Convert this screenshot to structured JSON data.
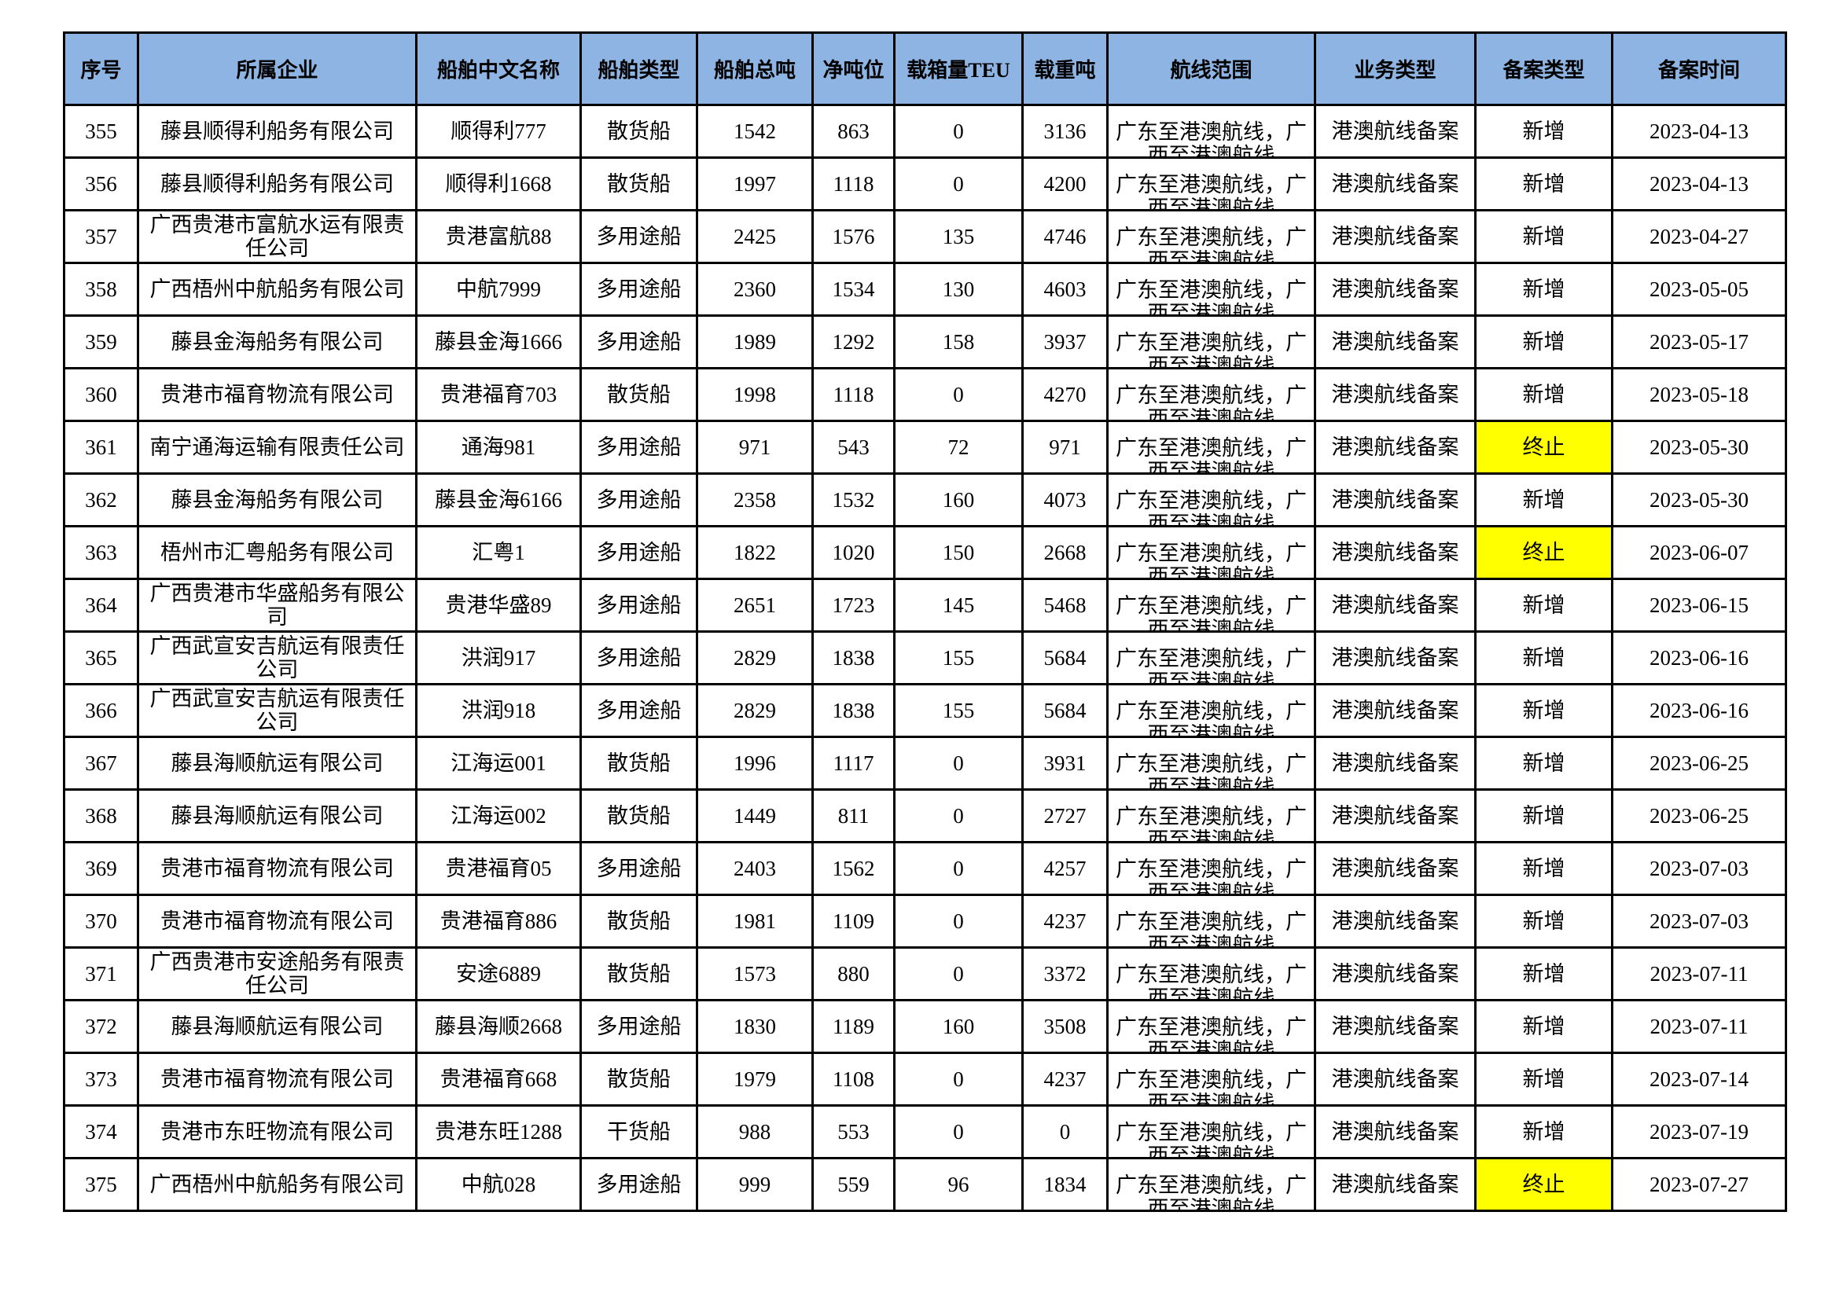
{
  "headers": [
    "序号",
    "所属企业",
    "船舶中文名称",
    "船舶类型",
    "船舶总吨",
    "净吨位",
    "载箱量TEU",
    "载重吨",
    "航线范围",
    "业务类型",
    "备案类型",
    "备案时间"
  ],
  "highlight_color": "#ffff00",
  "header_color": "#8db4e2",
  "rows": [
    [
      "355",
      "藤县顺得利船务有限公司",
      "顺得利777",
      "散货船",
      "1542",
      "863",
      "0",
      "3136",
      "广东至港澳航线，广西至港澳航线",
      "港澳航线备案",
      "新增",
      "2023-04-13"
    ],
    [
      "356",
      "藤县顺得利船务有限公司",
      "顺得利1668",
      "散货船",
      "1997",
      "1118",
      "0",
      "4200",
      "广东至港澳航线，广西至港澳航线",
      "港澳航线备案",
      "新增",
      "2023-04-13"
    ],
    [
      "357",
      "广西贵港市富航水运有限责任公司",
      "贵港富航88",
      "多用途船",
      "2425",
      "1576",
      "135",
      "4746",
      "广东至港澳航线，广西至港澳航线",
      "港澳航线备案",
      "新增",
      "2023-04-27"
    ],
    [
      "358",
      "广西梧州中航船务有限公司",
      "中航7999",
      "多用途船",
      "2360",
      "1534",
      "130",
      "4603",
      "广东至港澳航线，广西至港澳航线",
      "港澳航线备案",
      "新增",
      "2023-05-05"
    ],
    [
      "359",
      "藤县金海船务有限公司",
      "藤县金海1666",
      "多用途船",
      "1989",
      "1292",
      "158",
      "3937",
      "广东至港澳航线，广西至港澳航线",
      "港澳航线备案",
      "新增",
      "2023-05-17"
    ],
    [
      "360",
      "贵港市福育物流有限公司",
      "贵港福育703",
      "散货船",
      "1998",
      "1118",
      "0",
      "4270",
      "广东至港澳航线，广西至港澳航线",
      "港澳航线备案",
      "新增",
      "2023-05-18"
    ],
    [
      "361",
      "南宁通海运输有限责任公司",
      "通海981",
      "多用途船",
      "971",
      "543",
      "72",
      "971",
      "广东至港澳航线，广西至港澳航线",
      "港澳航线备案",
      "终止",
      "2023-05-30"
    ],
    [
      "362",
      "藤县金海船务有限公司",
      "藤县金海6166",
      "多用途船",
      "2358",
      "1532",
      "160",
      "4073",
      "广东至港澳航线，广西至港澳航线",
      "港澳航线备案",
      "新增",
      "2023-05-30"
    ],
    [
      "363",
      "梧州市汇粤船务有限公司",
      "汇粤1",
      "多用途船",
      "1822",
      "1020",
      "150",
      "2668",
      "广东至港澳航线，广西至港澳航线",
      "港澳航线备案",
      "终止",
      "2023-06-07"
    ],
    [
      "364",
      "广西贵港市华盛船务有限公司",
      "贵港华盛89",
      "多用途船",
      "2651",
      "1723",
      "145",
      "5468",
      "广东至港澳航线，广西至港澳航线",
      "港澳航线备案",
      "新增",
      "2023-06-15"
    ],
    [
      "365",
      "广西武宣安吉航运有限责任公司",
      "洪润917",
      "多用途船",
      "2829",
      "1838",
      "155",
      "5684",
      "广东至港澳航线，广西至港澳航线",
      "港澳航线备案",
      "新增",
      "2023-06-16"
    ],
    [
      "366",
      "广西武宣安吉航运有限责任公司",
      "洪润918",
      "多用途船",
      "2829",
      "1838",
      "155",
      "5684",
      "广东至港澳航线，广西至港澳航线",
      "港澳航线备案",
      "新增",
      "2023-06-16"
    ],
    [
      "367",
      "藤县海顺航运有限公司",
      "江海运001",
      "散货船",
      "1996",
      "1117",
      "0",
      "3931",
      "广东至港澳航线，广西至港澳航线",
      "港澳航线备案",
      "新增",
      "2023-06-25"
    ],
    [
      "368",
      "藤县海顺航运有限公司",
      "江海运002",
      "散货船",
      "1449",
      "811",
      "0",
      "2727",
      "广东至港澳航线，广西至港澳航线",
      "港澳航线备案",
      "新增",
      "2023-06-25"
    ],
    [
      "369",
      "贵港市福育物流有限公司",
      "贵港福育05",
      "多用途船",
      "2403",
      "1562",
      "0",
      "4257",
      "广东至港澳航线，广西至港澳航线",
      "港澳航线备案",
      "新增",
      "2023-07-03"
    ],
    [
      "370",
      "贵港市福育物流有限公司",
      "贵港福育886",
      "散货船",
      "1981",
      "1109",
      "0",
      "4237",
      "广东至港澳航线，广西至港澳航线",
      "港澳航线备案",
      "新增",
      "2023-07-03"
    ],
    [
      "371",
      "广西贵港市安途船务有限责任公司",
      "安途6889",
      "散货船",
      "1573",
      "880",
      "0",
      "3372",
      "广东至港澳航线，广西至港澳航线",
      "港澳航线备案",
      "新增",
      "2023-07-11"
    ],
    [
      "372",
      "藤县海顺航运有限公司",
      "藤县海顺2668",
      "多用途船",
      "1830",
      "1189",
      "160",
      "3508",
      "广东至港澳航线，广西至港澳航线",
      "港澳航线备案",
      "新增",
      "2023-07-11"
    ],
    [
      "373",
      "贵港市福育物流有限公司",
      "贵港福育668",
      "散货船",
      "1979",
      "1108",
      "0",
      "4237",
      "广东至港澳航线，广西至港澳航线",
      "港澳航线备案",
      "新增",
      "2023-07-14"
    ],
    [
      "374",
      "贵港市东旺物流有限公司",
      "贵港东旺1288",
      "干货船",
      "988",
      "553",
      "0",
      "0",
      "广东至港澳航线，广西至港澳航线",
      "港澳航线备案",
      "新增",
      "2023-07-19"
    ],
    [
      "375",
      "广西梧州中航船务有限公司",
      "中航028",
      "多用途船",
      "999",
      "559",
      "96",
      "1834",
      "广东至港澳航线，广西至港澳航线",
      "港澳航线备案",
      "终止",
      "2023-07-27"
    ]
  ]
}
